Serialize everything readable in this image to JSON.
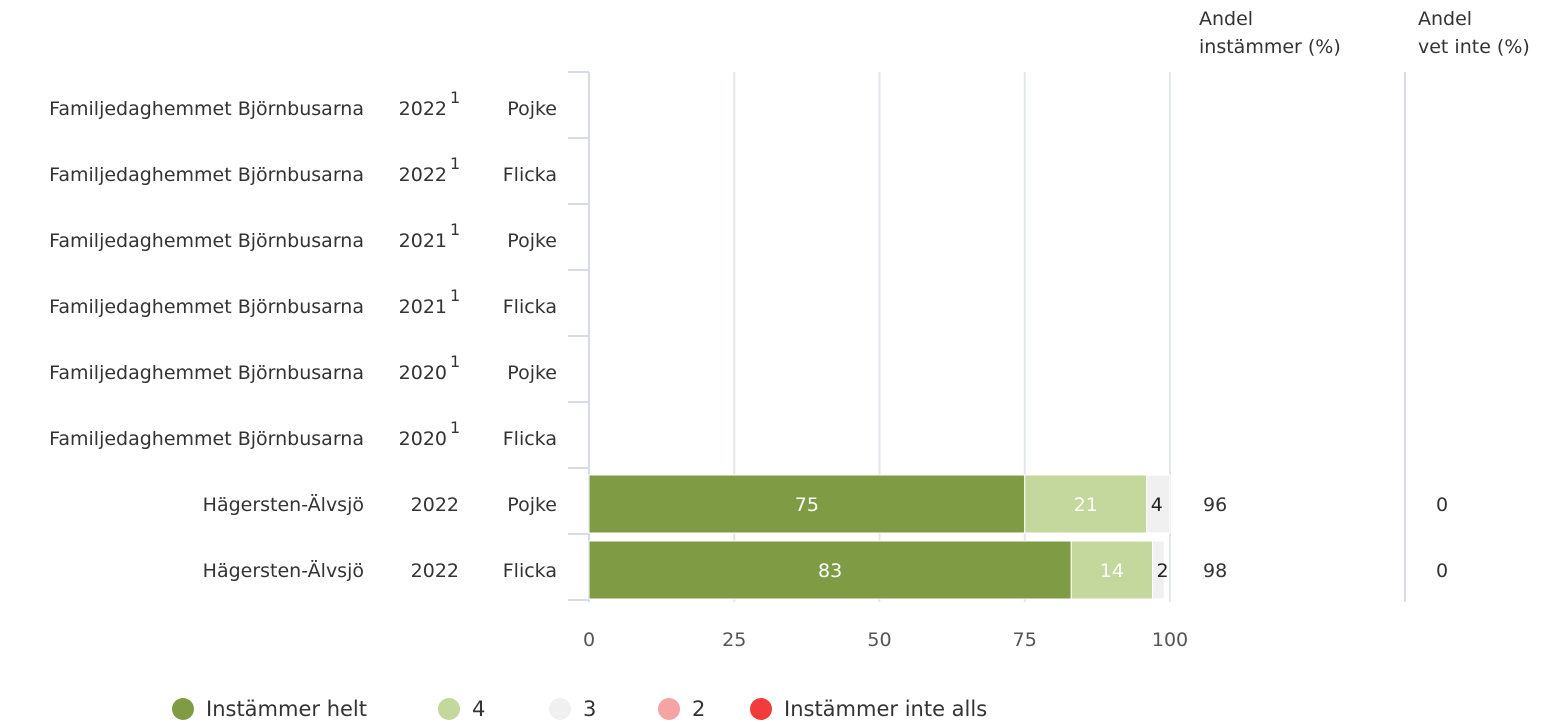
{
  "columns": {
    "share_agree": [
      "Andel",
      "instämmer (%)"
    ],
    "share_dont_know": [
      "Andel",
      "vet inte (%)"
    ]
  },
  "legend": [
    {
      "label": "Instämmer helt",
      "color": "#7f9c45"
    },
    {
      "label": "4",
      "color": "#c4d79c"
    },
    {
      "label": "3",
      "color": "#f0f0f0"
    },
    {
      "label": "2",
      "color": "#f5a3a3"
    },
    {
      "label": "Instämmer inte alls",
      "color": "#f23c3c"
    }
  ],
  "chart_data": {
    "type": "bar",
    "orientation": "horizontal",
    "stacked": true,
    "xlim": [
      0,
      100
    ],
    "xticks": [
      "0",
      "25",
      "50",
      "75",
      "100"
    ],
    "grid": true,
    "legend_position": "bottom",
    "rows": [
      {
        "unit": "Familjedaghemmet Björnbusarna",
        "year": "2022",
        "note": "1",
        "gender": "Pojke"
      },
      {
        "unit": "Familjedaghemmet Björnbusarna",
        "year": "2022",
        "note": "1",
        "gender": "Flicka"
      },
      {
        "unit": "Familjedaghemmet Björnbusarna",
        "year": "2021",
        "note": "1",
        "gender": "Pojke"
      },
      {
        "unit": "Familjedaghemmet Björnbusarna",
        "year": "2021",
        "note": "1",
        "gender": "Flicka"
      },
      {
        "unit": "Familjedaghemmet Björnbusarna",
        "year": "2020",
        "note": "1",
        "gender": "Pojke"
      },
      {
        "unit": "Familjedaghemmet Björnbusarna",
        "year": "2020",
        "note": "1",
        "gender": "Flicka"
      },
      {
        "unit": "Hägersten-Älvsjö",
        "year": "2022",
        "note": "",
        "gender": "Pojke",
        "segments": [
          75,
          21,
          4,
          0,
          0
        ],
        "share_agree": "96",
        "share_dont_know": "0"
      },
      {
        "unit": "Hägersten-Älvsjö",
        "year": "2022",
        "note": "",
        "gender": "Flicka",
        "segments": [
          83,
          14,
          2,
          0,
          0
        ],
        "share_agree": "98",
        "share_dont_know": "0"
      }
    ]
  }
}
